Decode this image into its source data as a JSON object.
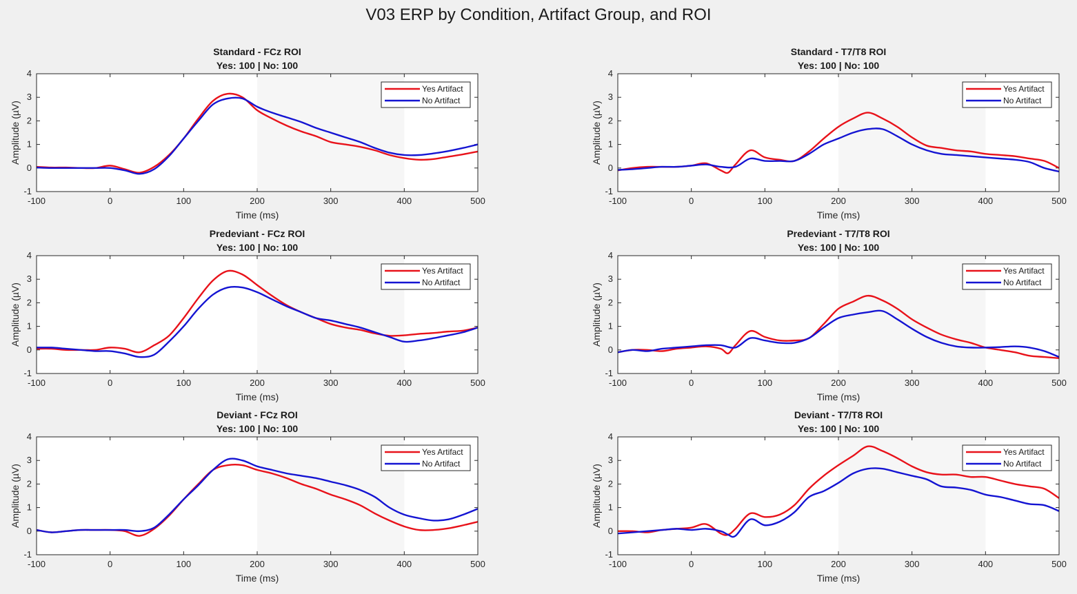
{
  "figure": {
    "title": "V03 ERP by Condition, Artifact Group, and ROI"
  },
  "colors": {
    "yes": "#e8121a",
    "no": "#1414d2",
    "background": "#f0f0f0",
    "axes": "#ffffff",
    "shade": "#f6f6f6"
  },
  "chart_data": [
    {
      "type": "line",
      "title": "Standard - FCz ROI",
      "subtitle": "Yes: 100 | No: 100",
      "xlabel": "Time (ms)",
      "ylabel": "Amplitude (µV)",
      "xlim": [
        -100,
        500
      ],
      "ylim": [
        -1,
        4
      ],
      "xticks": [
        -100,
        0,
        100,
        200,
        300,
        400,
        500
      ],
      "yticks": [
        -1,
        0,
        1,
        2,
        3,
        4
      ],
      "shaded_window": [
        200,
        400
      ],
      "grid": false,
      "legend": "top-right",
      "series": [
        {
          "name": "Yes Artifact",
          "color": "#e8121a",
          "x": [
            -100,
            -80,
            -60,
            -40,
            -20,
            0,
            20,
            40,
            60,
            80,
            100,
            120,
            140,
            160,
            180,
            200,
            220,
            240,
            260,
            280,
            300,
            320,
            340,
            360,
            380,
            400,
            420,
            440,
            460,
            480,
            500
          ],
          "y": [
            0.05,
            0.02,
            0.02,
            0.0,
            0.0,
            0.1,
            -0.05,
            -0.2,
            0.05,
            0.55,
            1.25,
            2.1,
            2.85,
            3.15,
            3.0,
            2.45,
            2.1,
            1.8,
            1.55,
            1.35,
            1.1,
            1.0,
            0.9,
            0.75,
            0.55,
            0.42,
            0.35,
            0.38,
            0.48,
            0.58,
            0.7
          ]
        },
        {
          "name": "No Artifact",
          "color": "#1414d2",
          "x": [
            -100,
            -80,
            -60,
            -40,
            -20,
            0,
            20,
            40,
            60,
            80,
            100,
            120,
            140,
            160,
            180,
            200,
            220,
            240,
            260,
            280,
            300,
            320,
            340,
            360,
            380,
            400,
            420,
            440,
            460,
            480,
            500
          ],
          "y": [
            0.02,
            0.0,
            0.0,
            0.0,
            0.0,
            0.0,
            -0.1,
            -0.25,
            -0.05,
            0.5,
            1.25,
            2.0,
            2.7,
            2.95,
            2.95,
            2.6,
            2.35,
            2.15,
            1.95,
            1.7,
            1.5,
            1.3,
            1.1,
            0.85,
            0.65,
            0.55,
            0.55,
            0.62,
            0.72,
            0.85,
            1.0
          ]
        }
      ]
    },
    {
      "type": "line",
      "title": "Standard - T7/T8 ROI",
      "subtitle": "Yes: 100 | No: 100",
      "xlabel": "Time (ms)",
      "ylabel": "Amplitude (µV)",
      "xlim": [
        -100,
        500
      ],
      "ylim": [
        -1,
        4
      ],
      "xticks": [
        -100,
        0,
        100,
        200,
        300,
        400,
        500
      ],
      "yticks": [
        -1,
        0,
        1,
        2,
        3,
        4
      ],
      "shaded_window": [
        200,
        400
      ],
      "grid": false,
      "legend": "top-right",
      "series": [
        {
          "name": "Yes Artifact",
          "color": "#e8121a",
          "x": [
            -100,
            -80,
            -60,
            -40,
            -20,
            0,
            20,
            40,
            50,
            60,
            80,
            100,
            120,
            140,
            160,
            180,
            200,
            220,
            240,
            260,
            280,
            300,
            320,
            340,
            360,
            380,
            400,
            420,
            440,
            460,
            480,
            500
          ],
          "y": [
            -0.1,
            0.0,
            0.05,
            0.05,
            0.05,
            0.1,
            0.2,
            -0.1,
            -0.2,
            0.15,
            0.75,
            0.45,
            0.35,
            0.3,
            0.7,
            1.25,
            1.75,
            2.1,
            2.35,
            2.1,
            1.75,
            1.3,
            0.95,
            0.85,
            0.75,
            0.7,
            0.6,
            0.55,
            0.5,
            0.4,
            0.3,
            0.0
          ]
        },
        {
          "name": "No Artifact",
          "color": "#1414d2",
          "x": [
            -100,
            -80,
            -60,
            -40,
            -20,
            0,
            20,
            40,
            60,
            80,
            100,
            120,
            140,
            160,
            180,
            200,
            220,
            240,
            260,
            280,
            300,
            320,
            340,
            360,
            380,
            400,
            420,
            440,
            460,
            480,
            500
          ],
          "y": [
            -0.08,
            -0.05,
            0.0,
            0.05,
            0.05,
            0.1,
            0.15,
            0.05,
            0.05,
            0.4,
            0.3,
            0.3,
            0.3,
            0.6,
            1.0,
            1.25,
            1.5,
            1.65,
            1.65,
            1.35,
            1.0,
            0.75,
            0.6,
            0.55,
            0.5,
            0.45,
            0.4,
            0.35,
            0.25,
            0.0,
            -0.15
          ]
        }
      ]
    },
    {
      "type": "line",
      "title": "Predeviant - FCz ROI",
      "subtitle": "Yes: 100 | No: 100",
      "xlabel": "Time (ms)",
      "ylabel": "Amplitude (µV)",
      "xlim": [
        -100,
        500
      ],
      "ylim": [
        -1,
        4
      ],
      "xticks": [
        -100,
        0,
        100,
        200,
        300,
        400,
        500
      ],
      "yticks": [
        -1,
        0,
        1,
        2,
        3,
        4
      ],
      "shaded_window": [
        200,
        400
      ],
      "grid": false,
      "legend": "top-right",
      "series": [
        {
          "name": "Yes Artifact",
          "color": "#e8121a",
          "x": [
            -100,
            -80,
            -60,
            -40,
            -20,
            0,
            20,
            40,
            60,
            80,
            100,
            120,
            140,
            160,
            180,
            200,
            220,
            240,
            260,
            280,
            300,
            320,
            340,
            360,
            380,
            400,
            420,
            440,
            460,
            480,
            500
          ],
          "y": [
            0.05,
            0.05,
            0.0,
            0.0,
            0.0,
            0.1,
            0.05,
            -0.1,
            0.2,
            0.6,
            1.35,
            2.2,
            2.95,
            3.35,
            3.2,
            2.75,
            2.3,
            1.9,
            1.6,
            1.35,
            1.1,
            0.95,
            0.85,
            0.7,
            0.6,
            0.62,
            0.68,
            0.72,
            0.78,
            0.82,
            0.95
          ]
        },
        {
          "name": "No Artifact",
          "color": "#1414d2",
          "x": [
            -100,
            -80,
            -60,
            -40,
            -20,
            0,
            20,
            40,
            60,
            80,
            100,
            120,
            140,
            160,
            180,
            200,
            220,
            240,
            260,
            280,
            300,
            320,
            340,
            360,
            380,
            400,
            420,
            440,
            460,
            480,
            500
          ],
          "y": [
            0.1,
            0.1,
            0.05,
            0.0,
            -0.05,
            -0.05,
            -0.15,
            -0.3,
            -0.2,
            0.35,
            1.0,
            1.75,
            2.35,
            2.65,
            2.65,
            2.45,
            2.15,
            1.85,
            1.6,
            1.35,
            1.25,
            1.1,
            0.95,
            0.75,
            0.55,
            0.35,
            0.4,
            0.5,
            0.62,
            0.75,
            0.95
          ]
        }
      ]
    },
    {
      "type": "line",
      "title": "Predeviant - T7/T8 ROI",
      "subtitle": "Yes: 100 | No: 100",
      "xlabel": "Time (ms)",
      "ylabel": "Amplitude (µV)",
      "xlim": [
        -100,
        500
      ],
      "ylim": [
        -1,
        4
      ],
      "xticks": [
        -100,
        0,
        100,
        200,
        300,
        400,
        500
      ],
      "yticks": [
        -1,
        0,
        1,
        2,
        3,
        4
      ],
      "shaded_window": [
        200,
        400
      ],
      "grid": false,
      "legend": "top-right",
      "series": [
        {
          "name": "Yes Artifact",
          "color": "#e8121a",
          "x": [
            -100,
            -80,
            -60,
            -40,
            -20,
            0,
            20,
            40,
            50,
            60,
            80,
            100,
            120,
            140,
            160,
            180,
            200,
            220,
            240,
            260,
            280,
            300,
            320,
            340,
            360,
            380,
            400,
            420,
            440,
            460,
            480,
            500
          ],
          "y": [
            -0.1,
            0.0,
            0.0,
            -0.05,
            0.05,
            0.1,
            0.15,
            0.05,
            -0.15,
            0.2,
            0.8,
            0.55,
            0.4,
            0.4,
            0.5,
            1.1,
            1.75,
            2.05,
            2.3,
            2.1,
            1.75,
            1.3,
            0.95,
            0.65,
            0.45,
            0.3,
            0.1,
            0.0,
            -0.1,
            -0.25,
            -0.3,
            -0.35
          ]
        },
        {
          "name": "No Artifact",
          "color": "#1414d2",
          "x": [
            -100,
            -80,
            -60,
            -40,
            -20,
            0,
            20,
            40,
            60,
            80,
            100,
            120,
            140,
            160,
            180,
            200,
            220,
            240,
            260,
            280,
            300,
            320,
            340,
            360,
            380,
            400,
            420,
            440,
            460,
            480,
            500
          ],
          "y": [
            -0.1,
            0.0,
            -0.05,
            0.05,
            0.1,
            0.15,
            0.2,
            0.2,
            0.1,
            0.5,
            0.4,
            0.3,
            0.3,
            0.5,
            0.95,
            1.35,
            1.5,
            1.6,
            1.65,
            1.3,
            0.9,
            0.55,
            0.3,
            0.15,
            0.1,
            0.1,
            0.12,
            0.15,
            0.1,
            -0.05,
            -0.3
          ]
        }
      ]
    },
    {
      "type": "line",
      "title": "Deviant - FCz ROI",
      "subtitle": "Yes: 100 | No: 100",
      "xlabel": "Time (ms)",
      "ylabel": "Amplitude (µV)",
      "xlim": [
        -100,
        500
      ],
      "ylim": [
        -1,
        4
      ],
      "xticks": [
        -100,
        0,
        100,
        200,
        300,
        400,
        500
      ],
      "yticks": [
        -1,
        0,
        1,
        2,
        3,
        4
      ],
      "shaded_window": [
        200,
        400
      ],
      "grid": false,
      "legend": "top-right",
      "series": [
        {
          "name": "Yes Artifact",
          "color": "#e8121a",
          "x": [
            -100,
            -80,
            -60,
            -40,
            -20,
            0,
            20,
            40,
            60,
            80,
            100,
            120,
            140,
            160,
            180,
            200,
            220,
            240,
            260,
            280,
            300,
            320,
            340,
            360,
            380,
            400,
            420,
            440,
            460,
            480,
            500
          ],
          "y": [
            0.05,
            -0.05,
            0.0,
            0.05,
            0.05,
            0.05,
            0.0,
            -0.2,
            0.1,
            0.65,
            1.35,
            2.0,
            2.6,
            2.8,
            2.8,
            2.6,
            2.45,
            2.25,
            2.0,
            1.8,
            1.55,
            1.35,
            1.1,
            0.75,
            0.45,
            0.2,
            0.05,
            0.05,
            0.12,
            0.25,
            0.4
          ]
        },
        {
          "name": "No Artifact",
          "color": "#1414d2",
          "x": [
            -100,
            -80,
            -60,
            -40,
            -20,
            0,
            20,
            40,
            60,
            80,
            100,
            120,
            140,
            160,
            180,
            200,
            220,
            240,
            260,
            280,
            300,
            320,
            340,
            360,
            380,
            400,
            420,
            440,
            460,
            480,
            500
          ],
          "y": [
            0.05,
            -0.05,
            0.0,
            0.05,
            0.05,
            0.05,
            0.05,
            0.0,
            0.15,
            0.7,
            1.35,
            1.95,
            2.6,
            3.05,
            3.0,
            2.75,
            2.6,
            2.45,
            2.35,
            2.25,
            2.1,
            1.95,
            1.75,
            1.45,
            1.0,
            0.7,
            0.55,
            0.45,
            0.5,
            0.7,
            0.95
          ]
        }
      ]
    },
    {
      "type": "line",
      "title": "Deviant - T7/T8 ROI",
      "subtitle": "Yes: 100 | No: 100",
      "xlabel": "Time (ms)",
      "ylabel": "Amplitude (µV)",
      "xlim": [
        -100,
        500
      ],
      "ylim": [
        -1,
        4
      ],
      "xticks": [
        -100,
        0,
        100,
        200,
        300,
        400,
        500
      ],
      "yticks": [
        -1,
        0,
        1,
        2,
        3,
        4
      ],
      "shaded_window": [
        200,
        400
      ],
      "grid": false,
      "legend": "top-right",
      "series": [
        {
          "name": "Yes Artifact",
          "color": "#e8121a",
          "x": [
            -100,
            -80,
            -60,
            -40,
            -20,
            0,
            20,
            40,
            50,
            60,
            80,
            100,
            120,
            140,
            160,
            180,
            200,
            220,
            240,
            260,
            280,
            300,
            320,
            340,
            360,
            380,
            400,
            420,
            440,
            460,
            480,
            500
          ],
          "y": [
            0.0,
            0.0,
            -0.05,
            0.05,
            0.1,
            0.15,
            0.3,
            -0.1,
            -0.15,
            0.1,
            0.75,
            0.6,
            0.7,
            1.1,
            1.8,
            2.35,
            2.8,
            3.2,
            3.6,
            3.4,
            3.1,
            2.75,
            2.5,
            2.4,
            2.4,
            2.3,
            2.3,
            2.15,
            2.0,
            1.9,
            1.8,
            1.4
          ]
        },
        {
          "name": "No Artifact",
          "color": "#1414d2",
          "x": [
            -100,
            -80,
            -60,
            -40,
            -20,
            0,
            20,
            40,
            50,
            60,
            80,
            100,
            120,
            140,
            160,
            180,
            200,
            220,
            240,
            260,
            280,
            300,
            320,
            340,
            360,
            380,
            400,
            420,
            440,
            460,
            480,
            500
          ],
          "y": [
            -0.1,
            -0.05,
            0.0,
            0.05,
            0.1,
            0.05,
            0.1,
            0.0,
            -0.15,
            -0.2,
            0.5,
            0.25,
            0.4,
            0.8,
            1.45,
            1.7,
            2.05,
            2.45,
            2.65,
            2.65,
            2.5,
            2.35,
            2.2,
            1.9,
            1.85,
            1.75,
            1.55,
            1.45,
            1.3,
            1.15,
            1.1,
            0.85
          ]
        }
      ]
    }
  ]
}
